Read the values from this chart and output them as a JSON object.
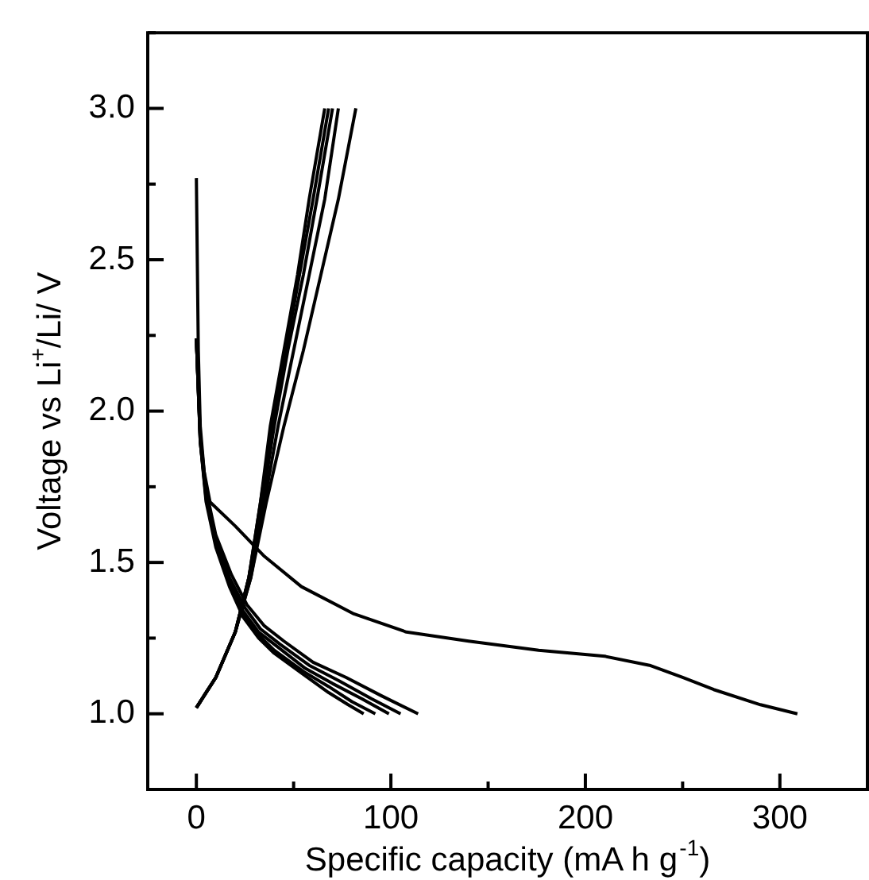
{
  "chart_data": {
    "type": "line",
    "xlabel": "Specific capacity (mA h g$^{-1}$)",
    "ylabel": "Voltage vs Li$^{+}$/Li/ V",
    "xlim": [
      -25,
      345
    ],
    "ylim": [
      0.75,
      3.25
    ],
    "xticks": [
      0,
      {
        "value": 50,
        "label": null
      },
      100,
      {
        "value": 150,
        "label": null
      },
      200,
      {
        "value": 250,
        "label": null
      },
      300
    ],
    "yticks": [
      {
        "value": 0.75,
        "label": null
      },
      {
        "value": 1,
        "label": "1.0"
      },
      {
        "value": 1.25,
        "label": null
      },
      {
        "value": 1.5,
        "label": "1.5"
      },
      {
        "value": 1.75,
        "label": null
      },
      {
        "value": 2,
        "label": "2.0"
      },
      {
        "value": 2.25,
        "label": null
      },
      {
        "value": 2.5,
        "label": "2.5"
      },
      {
        "value": 2.75,
        "label": null
      },
      {
        "value": 3,
        "label": "3.0"
      },
      {
        "value": 3.25,
        "label": null
      }
    ],
    "grid": false,
    "legend": false,
    "marker": "none",
    "line_style": "solid",
    "series": [
      {
        "color": "#000000",
        "x": [
          0,
          1,
          2,
          4,
          7,
          20,
          35,
          54,
          81,
          108,
          140,
          176,
          210,
          233,
          250,
          266,
          290,
          309
        ],
        "values": [
          2.77,
          2.2,
          1.95,
          1.8,
          1.7,
          1.62,
          1.52,
          1.42,
          1.33,
          1.27,
          1.24,
          1.21,
          1.19,
          1.16,
          1.12,
          1.08,
          1.03,
          1.0
        ]
      },
      {
        "color": "#000000",
        "x": [
          0,
          2,
          5,
          10,
          17,
          24,
          32,
          40,
          55,
          68,
          78,
          86
        ],
        "values": [
          2.24,
          1.9,
          1.7,
          1.55,
          1.42,
          1.32,
          1.25,
          1.2,
          1.13,
          1.07,
          1.03,
          1.0
        ]
      },
      {
        "color": "#000000",
        "x": [
          0,
          2,
          5,
          10,
          17,
          24,
          32,
          40,
          55,
          68,
          80,
          92
        ],
        "values": [
          2.24,
          1.9,
          1.71,
          1.56,
          1.43,
          1.33,
          1.26,
          1.21,
          1.14,
          1.09,
          1.04,
          1.0
        ]
      },
      {
        "color": "#000000",
        "x": [
          0,
          2,
          5,
          10,
          17,
          24,
          32,
          42,
          56,
          70,
          85,
          99
        ],
        "values": [
          2.24,
          1.9,
          1.72,
          1.57,
          1.44,
          1.34,
          1.27,
          1.22,
          1.15,
          1.1,
          1.05,
          1.0
        ]
      },
      {
        "color": "#000000",
        "x": [
          0,
          2,
          5,
          10,
          17,
          25,
          33,
          43,
          58,
          73,
          90,
          105
        ],
        "values": [
          2.24,
          1.91,
          1.73,
          1.58,
          1.45,
          1.35,
          1.28,
          1.23,
          1.16,
          1.11,
          1.05,
          1.0
        ]
      },
      {
        "color": "#000000",
        "x": [
          0,
          2,
          5,
          10,
          18,
          26,
          35,
          45,
          60,
          77,
          95,
          114
        ],
        "values": [
          2.24,
          1.92,
          1.74,
          1.59,
          1.46,
          1.36,
          1.29,
          1.24,
          1.17,
          1.12,
          1.06,
          1.0
        ]
      },
      {
        "color": "#000000",
        "x": [
          0,
          10,
          20,
          27,
          33,
          38,
          45,
          52,
          58,
          66
        ],
        "values": [
          1.02,
          1.12,
          1.27,
          1.45,
          1.7,
          1.95,
          2.2,
          2.45,
          2.7,
          3.0
        ]
      },
      {
        "color": "#000000",
        "x": [
          0,
          10,
          20,
          27,
          33,
          39,
          46,
          53,
          60,
          68
        ],
        "values": [
          1.02,
          1.12,
          1.27,
          1.45,
          1.7,
          1.95,
          2.2,
          2.45,
          2.7,
          3.0
        ]
      },
      {
        "color": "#000000",
        "x": [
          0,
          10,
          20,
          27,
          34,
          40,
          47,
          55,
          62,
          70
        ],
        "values": [
          1.02,
          1.12,
          1.27,
          1.45,
          1.7,
          1.95,
          2.2,
          2.45,
          2.7,
          3.0
        ]
      },
      {
        "color": "#000000",
        "x": [
          0,
          10,
          20,
          28,
          35,
          42,
          50,
          58,
          66,
          73
        ],
        "values": [
          1.02,
          1.12,
          1.27,
          1.45,
          1.7,
          1.95,
          2.2,
          2.45,
          2.7,
          3.0
        ]
      },
      {
        "color": "#000000",
        "x": [
          0,
          10,
          20,
          28,
          36,
          45,
          55,
          64,
          73,
          82
        ],
        "values": [
          1.02,
          1.12,
          1.27,
          1.45,
          1.7,
          1.95,
          2.2,
          2.45,
          2.7,
          3.0
        ]
      }
    ]
  }
}
